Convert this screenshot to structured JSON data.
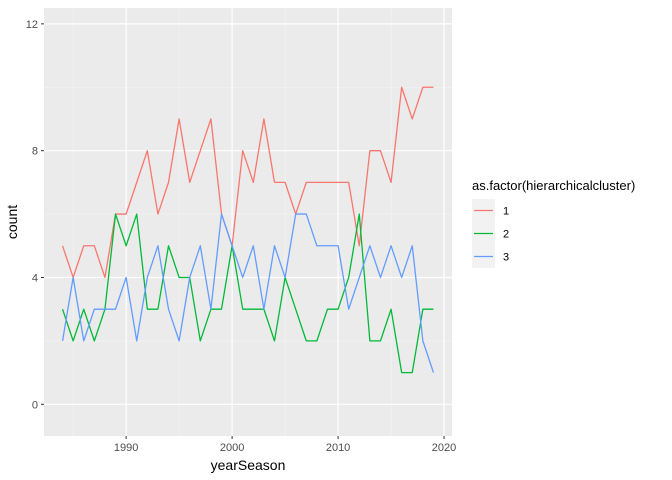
{
  "chart_data": {
    "type": "line",
    "xlabel": "yearSeason",
    "ylabel": "count",
    "xlim": [
      1982.25,
      2020.75
    ],
    "ylim": [
      -1,
      12.5
    ],
    "x_ticks": [
      1990,
      2000,
      2010,
      2020
    ],
    "y_ticks": [
      0,
      4,
      8,
      12
    ],
    "grid": true,
    "legend_title": "as.factor(hierarchicalcluster)",
    "legend_position": "right",
    "x": [
      1984,
      1985,
      1986,
      1987,
      1988,
      1989,
      1990,
      1991,
      1992,
      1993,
      1994,
      1995,
      1996,
      1997,
      1998,
      1999,
      2000,
      2001,
      2002,
      2003,
      2004,
      2005,
      2006,
      2007,
      2008,
      2009,
      2010,
      2011,
      2012,
      2013,
      2014,
      2015,
      2016,
      2017,
      2018,
      2019
    ],
    "series": [
      {
        "name": "1",
        "color": "#F8766D",
        "values": [
          5,
          4,
          5,
          5,
          4,
          6,
          6,
          7,
          8,
          6,
          7,
          9,
          7,
          8,
          9,
          6,
          5,
          8,
          7,
          9,
          7,
          7,
          6,
          7,
          7,
          7,
          7,
          7,
          5,
          8,
          8,
          7,
          10,
          9,
          10,
          10
        ]
      },
      {
        "name": "2",
        "color": "#00BA38",
        "values": [
          3,
          2,
          3,
          2,
          3,
          6,
          5,
          6,
          3,
          3,
          5,
          4,
          4,
          2,
          3,
          3,
          5,
          3,
          3,
          3,
          2,
          4,
          3,
          2,
          2,
          3,
          3,
          4,
          6,
          2,
          2,
          3,
          1,
          1,
          3,
          3
        ]
      },
      {
        "name": "3",
        "color": "#619CFF",
        "values": [
          2,
          4,
          2,
          3,
          3,
          3,
          4,
          2,
          4,
          5,
          3,
          2,
          4,
          5,
          3,
          6,
          5,
          4,
          5,
          3,
          5,
          4,
          6,
          6,
          5,
          5,
          5,
          3,
          4,
          5,
          4,
          5,
          4,
          5,
          2,
          1
        ]
      }
    ]
  }
}
